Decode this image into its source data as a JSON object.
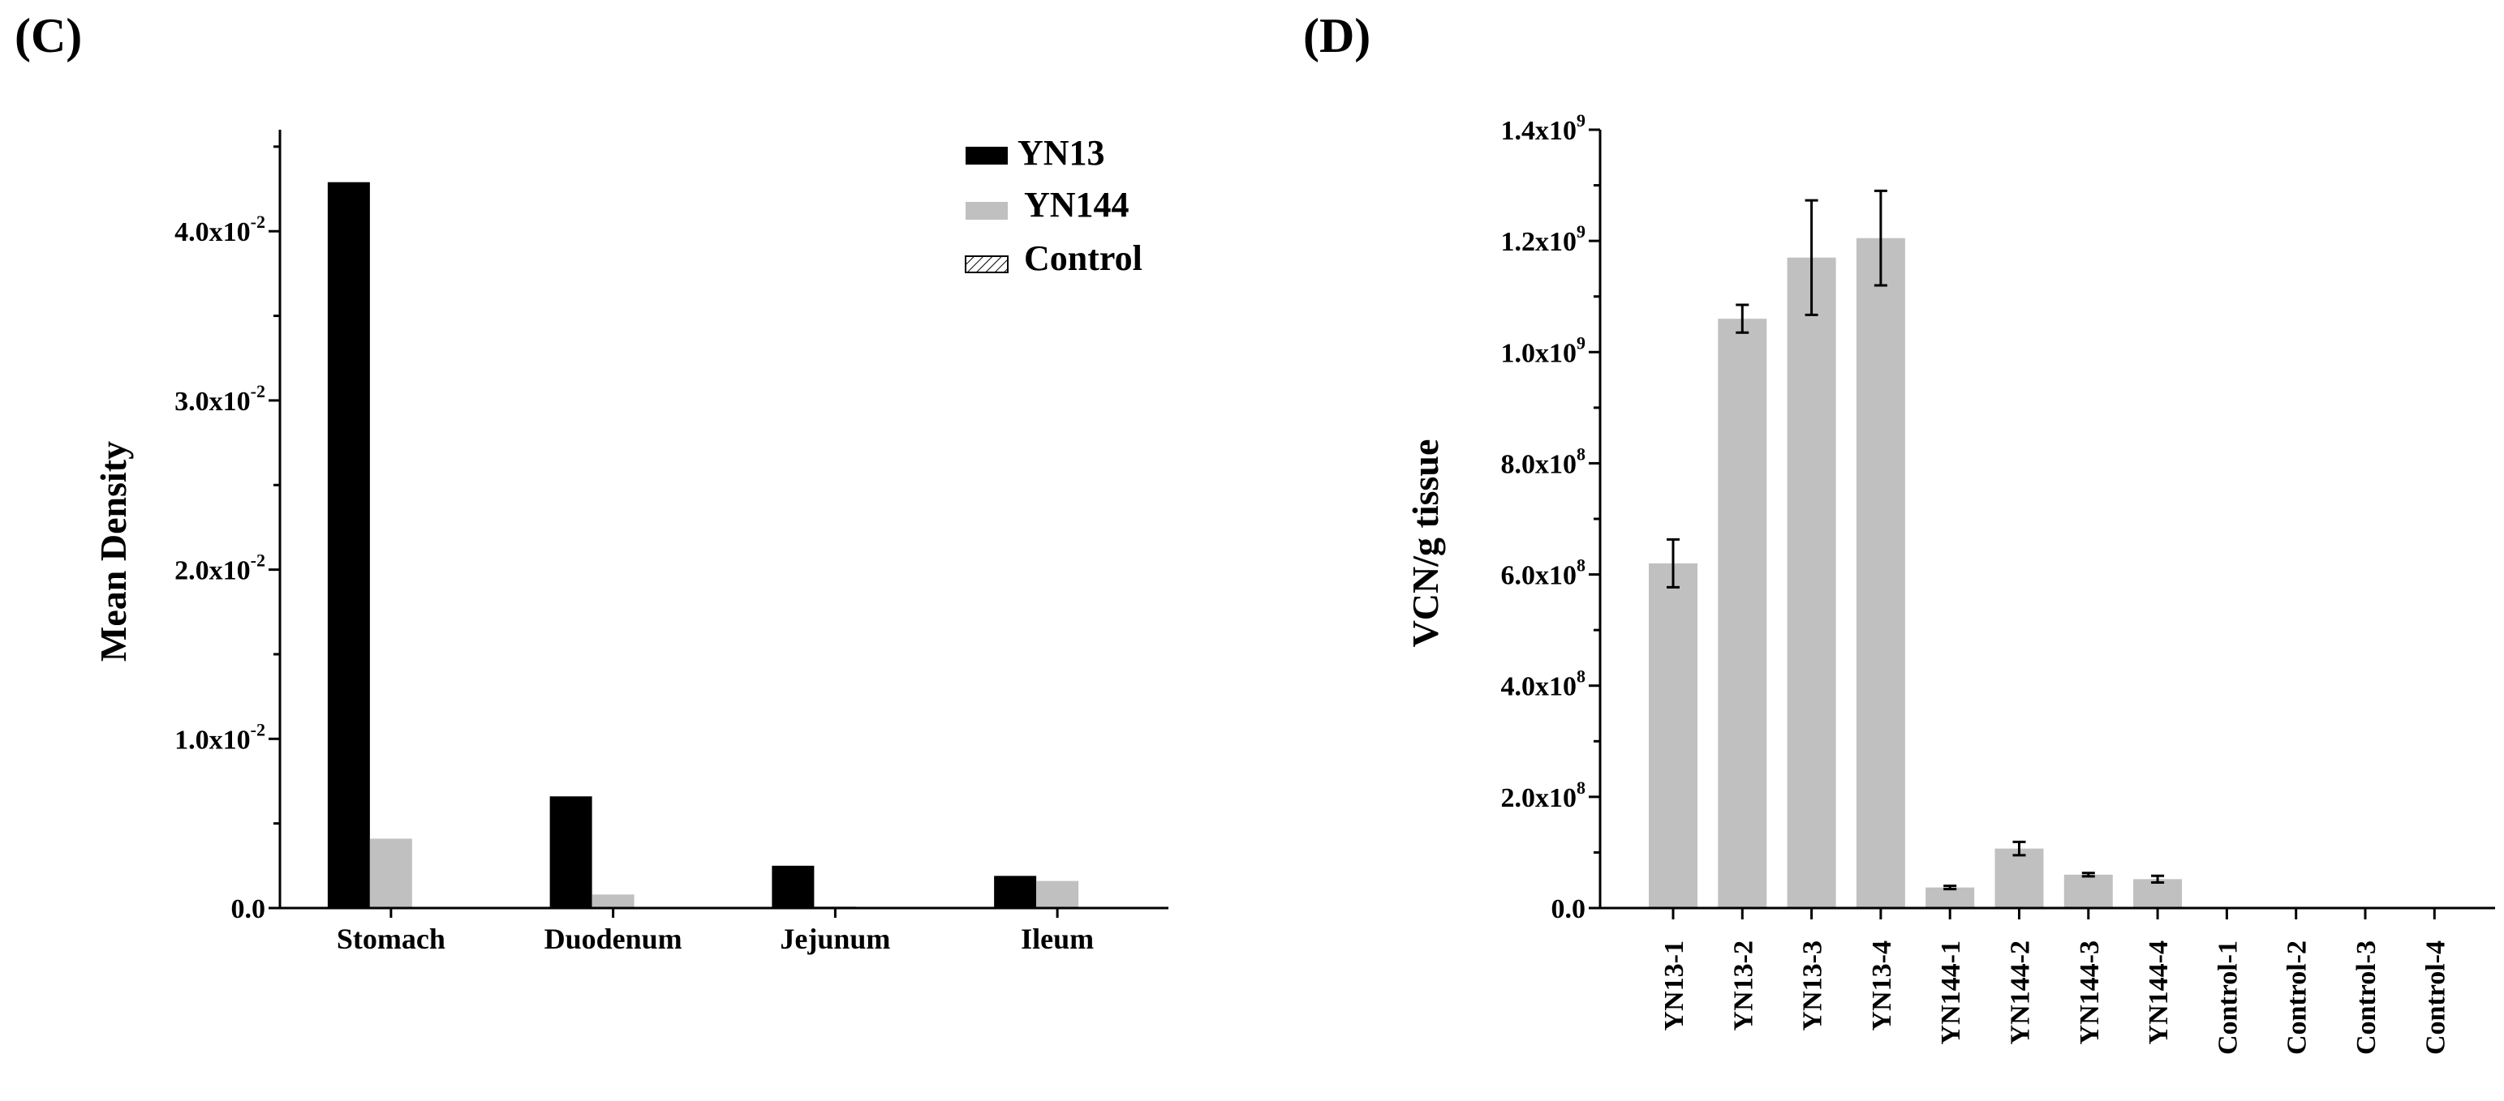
{
  "chart_data": [
    {
      "panel_label": "(C)",
      "type": "bar",
      "title": "",
      "xlabel": "",
      "ylabel": "Mean Density",
      "categories": [
        "Stomach",
        "Duodenum",
        "Jejunum",
        "Ileum"
      ],
      "series": [
        {
          "name": "YN13",
          "color": "#000000",
          "values": [
            0.0429,
            0.0066,
            0.0025,
            0.0019
          ]
        },
        {
          "name": "YN144",
          "color": "#c0c0c0",
          "values": [
            0.0041,
            0.0008,
            0.0001,
            0.0016
          ]
        },
        {
          "name": "Control",
          "color": "hatched",
          "values": [
            0,
            0,
            0,
            0
          ]
        }
      ],
      "ylim": [
        0,
        0.046
      ],
      "yticks": [
        {
          "value": 0.0,
          "mantissa": "0.0",
          "exponent": ""
        },
        {
          "value": 0.01,
          "mantissa": "1.0x10",
          "exponent": "-2"
        },
        {
          "value": 0.02,
          "mantissa": "2.0x10",
          "exponent": "-2"
        },
        {
          "value": 0.03,
          "mantissa": "3.0x10",
          "exponent": "-2"
        },
        {
          "value": 0.04,
          "mantissa": "4.0x10",
          "exponent": "-2"
        }
      ],
      "legend": {
        "position": "top-right",
        "entries": [
          "YN13",
          "YN144",
          "Control"
        ]
      },
      "grid": false
    },
    {
      "panel_label": "(D)",
      "type": "bar",
      "title": "",
      "xlabel": "",
      "ylabel": "VCN/g tissue",
      "categories": [
        "YN13-1",
        "YN13-2",
        "YN13-3",
        "YN13-4",
        "YN144-1",
        "YN144-2",
        "YN144-3",
        "YN144-4",
        "Control-1",
        "Control-2",
        "Control-3",
        "Control-4"
      ],
      "series": [
        {
          "name": "VCN/g tissue",
          "color": "#c0c0c0",
          "values": [
            620000000,
            1060000000,
            1170000000,
            1205000000,
            37000000,
            107000000,
            60000000,
            52000000,
            0,
            0,
            0,
            0
          ],
          "errors": [
            43000000,
            25000000,
            103000000,
            85000000,
            3000000,
            12000000,
            3000000,
            6000000,
            0,
            0,
            0,
            0
          ]
        }
      ],
      "ylim": [
        0,
        1400000000
      ],
      "yticks": [
        {
          "value": 0,
          "mantissa": "0.0",
          "exponent": ""
        },
        {
          "value": 200000000,
          "mantissa": "2.0x10",
          "exponent": "8"
        },
        {
          "value": 400000000,
          "mantissa": "4.0x10",
          "exponent": "8"
        },
        {
          "value": 600000000,
          "mantissa": "6.0x10",
          "exponent": "8"
        },
        {
          "value": 800000000,
          "mantissa": "8.0x10",
          "exponent": "8"
        },
        {
          "value": 1000000000,
          "mantissa": "1.0x10",
          "exponent": "9"
        },
        {
          "value": 1200000000,
          "mantissa": "1.2x10",
          "exponent": "9"
        },
        {
          "value": 1400000000,
          "mantissa": "1.4x10",
          "exponent": "9"
        }
      ],
      "grid": false
    }
  ]
}
